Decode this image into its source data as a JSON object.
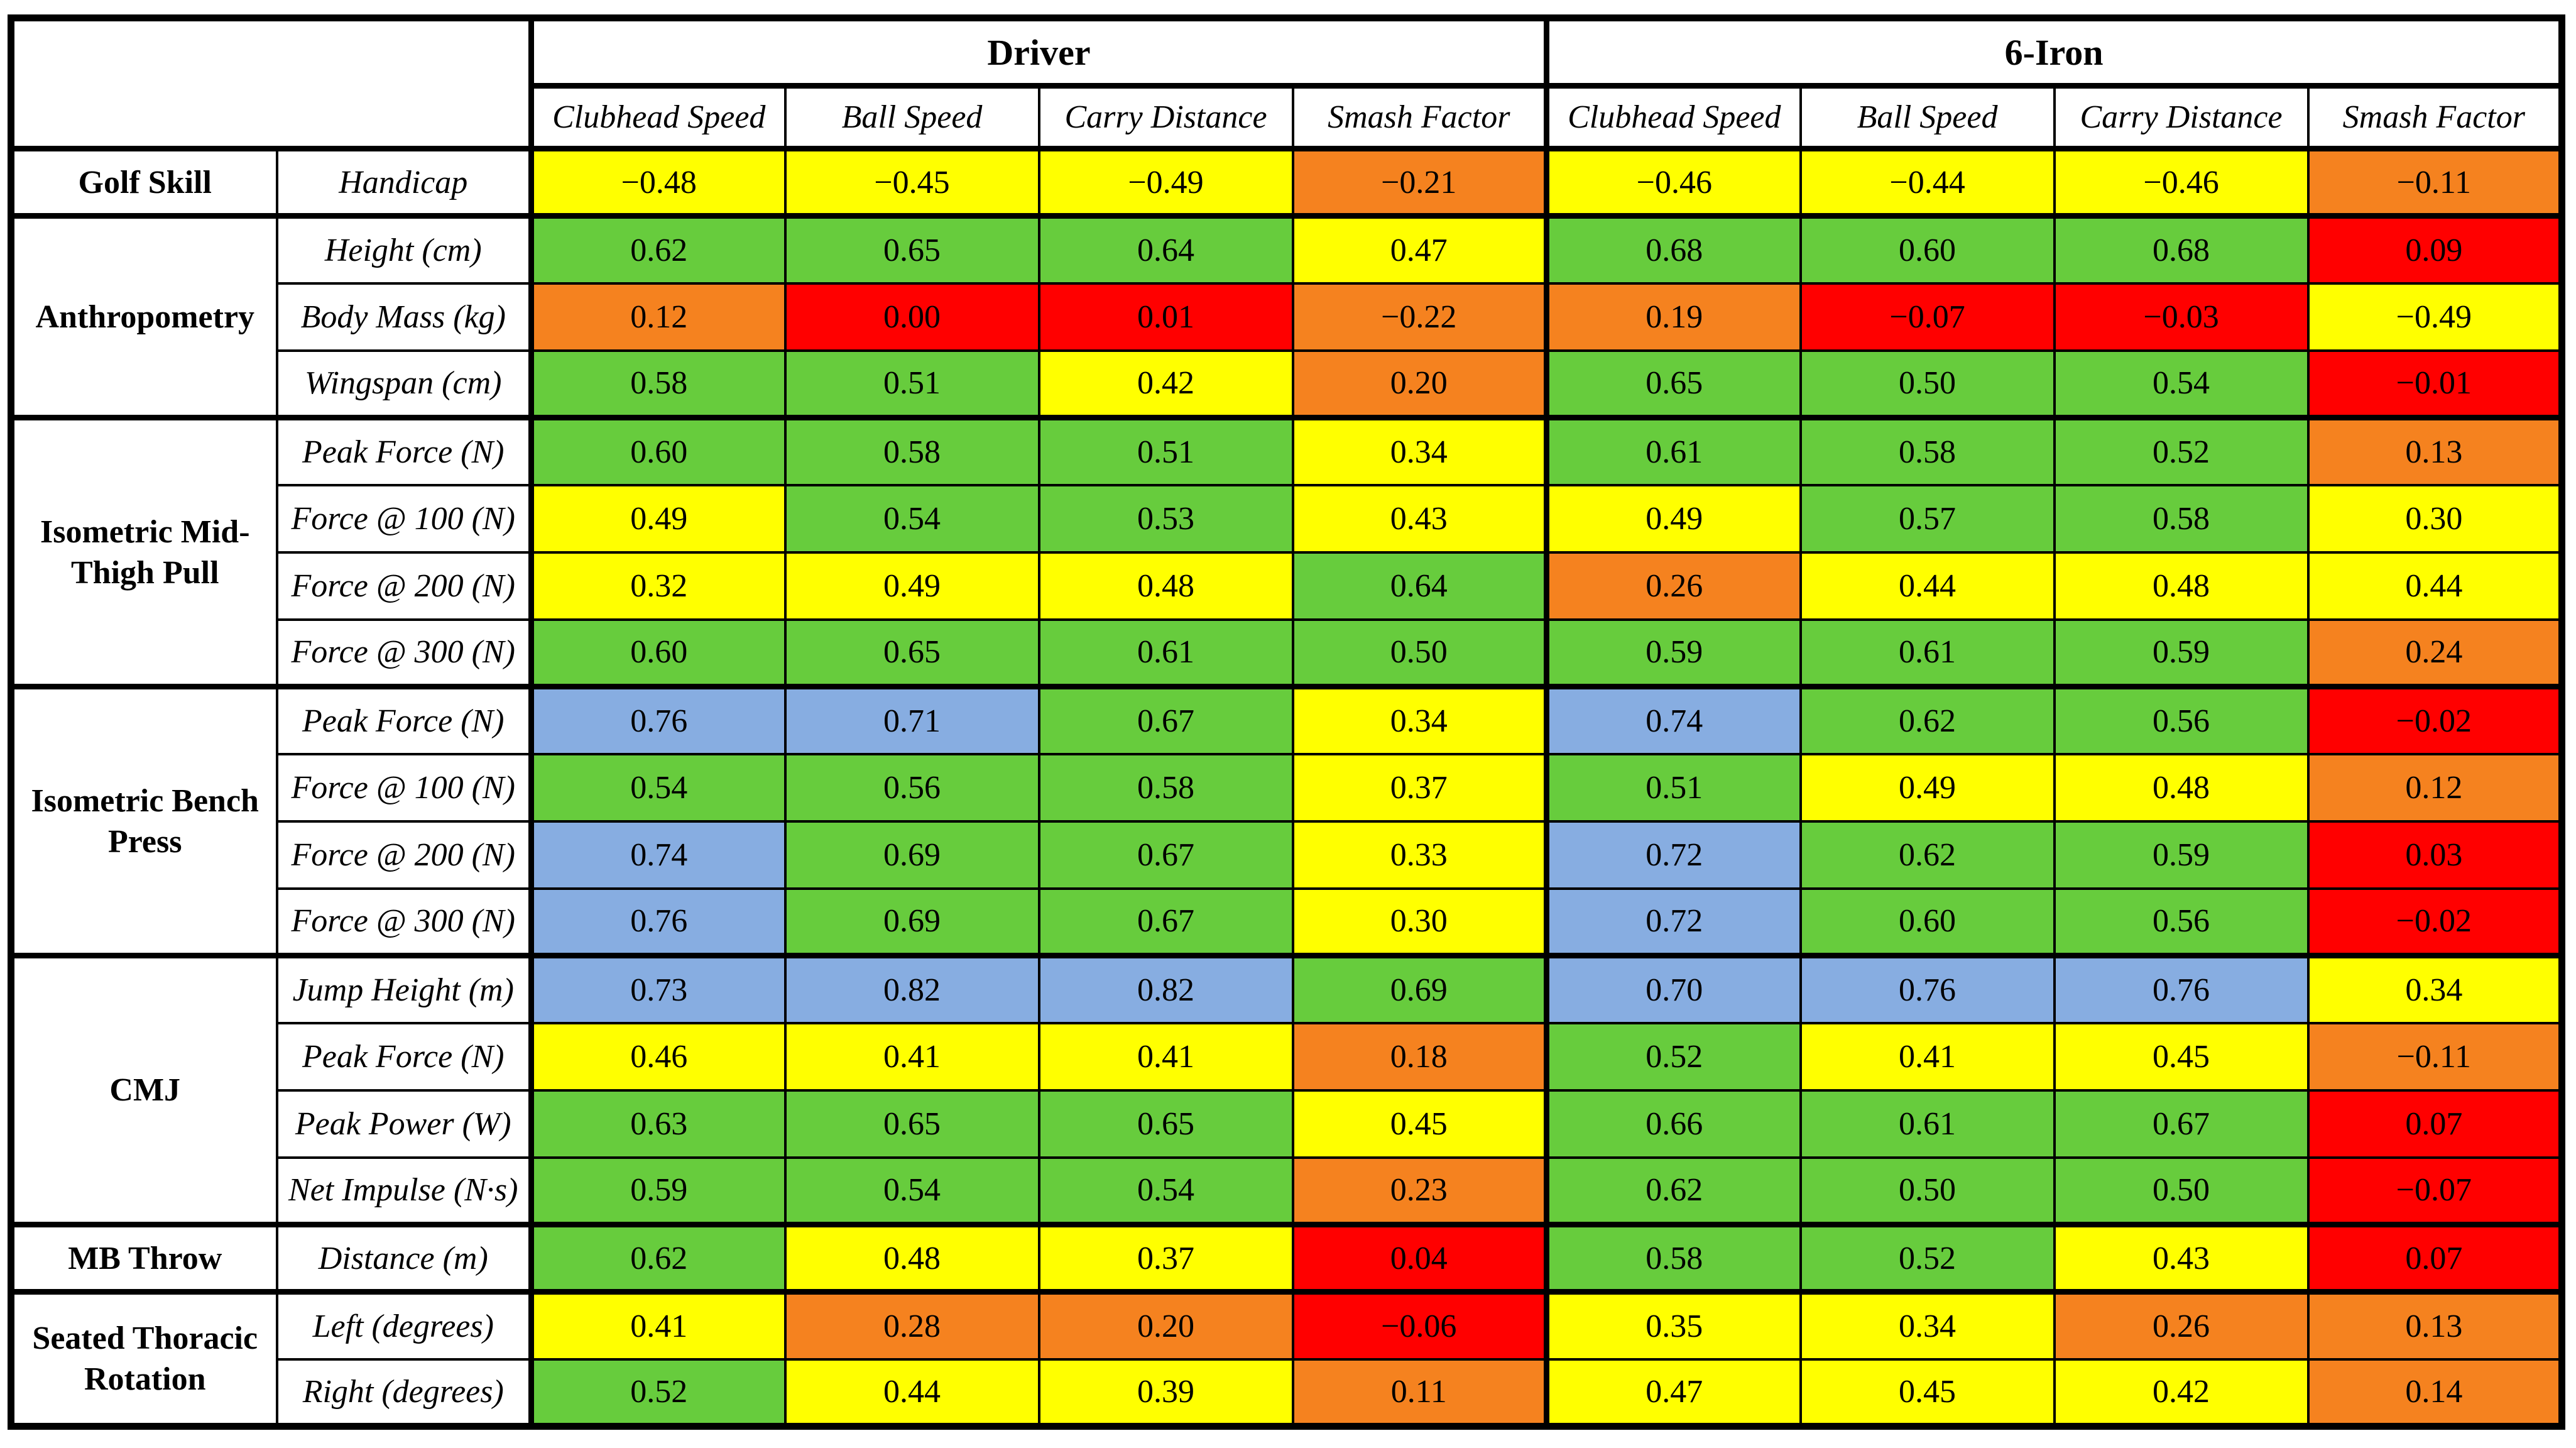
{
  "palette": {
    "blue": "#87ADE1",
    "green": "#67CC3D",
    "yellow": "#FFFF00",
    "orange": "#F5821F",
    "red": "#FF0000",
    "border": "#000000",
    "background": "#FFFFFF"
  },
  "chart_data": {
    "type": "heatmap",
    "title": "",
    "legend": "none",
    "grid": "table borders on",
    "value_range": [
      -1,
      1
    ],
    "column_groups": [
      "Driver",
      "6-Iron"
    ],
    "columns": [
      "Clubhead Speed",
      "Ball Speed",
      "Carry Distance",
      "Smash Factor",
      "Clubhead Speed",
      "Ball Speed",
      "Carry Distance",
      "Smash Factor"
    ],
    "row_groups": [
      {
        "label": "Golf Skill",
        "rows": [
          {
            "label": "Handicap",
            "values": [
              "−0.48",
              "−0.45",
              "−0.49",
              "−0.21",
              "−0.46",
              "−0.44",
              "−0.46",
              "−0.11"
            ],
            "colors": [
              "yellow",
              "yellow",
              "yellow",
              "orange",
              "yellow",
              "yellow",
              "yellow",
              "orange"
            ]
          }
        ]
      },
      {
        "label": "Anthropometry",
        "rows": [
          {
            "label": "Height (cm)",
            "values": [
              "0.62",
              "0.65",
              "0.64",
              "0.47",
              "0.68",
              "0.60",
              "0.68",
              "0.09"
            ],
            "colors": [
              "green",
              "green",
              "green",
              "yellow",
              "green",
              "green",
              "green",
              "red"
            ]
          },
          {
            "label": "Body Mass (kg)",
            "values": [
              "0.12",
              "0.00",
              "0.01",
              "−0.22",
              "0.19",
              "−0.07",
              "−0.03",
              "−0.49"
            ],
            "colors": [
              "orange",
              "red",
              "red",
              "orange",
              "orange",
              "red",
              "red",
              "yellow"
            ]
          },
          {
            "label": "Wingspan (cm)",
            "values": [
              "0.58",
              "0.51",
              "0.42",
              "0.20",
              "0.65",
              "0.50",
              "0.54",
              "−0.01"
            ],
            "colors": [
              "green",
              "green",
              "yellow",
              "orange",
              "green",
              "green",
              "green",
              "red"
            ]
          }
        ]
      },
      {
        "label": "Isometric Mid-\nThigh Pull",
        "rows": [
          {
            "label": "Peak Force (N)",
            "values": [
              "0.60",
              "0.58",
              "0.51",
              "0.34",
              "0.61",
              "0.58",
              "0.52",
              "0.13"
            ],
            "colors": [
              "green",
              "green",
              "green",
              "yellow",
              "green",
              "green",
              "green",
              "orange"
            ]
          },
          {
            "label": "Force @ 100 (N)",
            "values": [
              "0.49",
              "0.54",
              "0.53",
              "0.43",
              "0.49",
              "0.57",
              "0.58",
              "0.30"
            ],
            "colors": [
              "yellow",
              "green",
              "green",
              "yellow",
              "yellow",
              "green",
              "green",
              "yellow"
            ]
          },
          {
            "label": "Force @ 200 (N)",
            "values": [
              "0.32",
              "0.49",
              "0.48",
              "0.64",
              "0.26",
              "0.44",
              "0.48",
              "0.44"
            ],
            "colors": [
              "yellow",
              "yellow",
              "yellow",
              "green",
              "orange",
              "yellow",
              "yellow",
              "yellow"
            ]
          },
          {
            "label": "Force @ 300 (N)",
            "values": [
              "0.60",
              "0.65",
              "0.61",
              "0.50",
              "0.59",
              "0.61",
              "0.59",
              "0.24"
            ],
            "colors": [
              "green",
              "green",
              "green",
              "green",
              "green",
              "green",
              "green",
              "orange"
            ]
          }
        ]
      },
      {
        "label": "Isometric Bench\nPress",
        "rows": [
          {
            "label": "Peak Force (N)",
            "values": [
              "0.76",
              "0.71",
              "0.67",
              "0.34",
              "0.74",
              "0.62",
              "0.56",
              "−0.02"
            ],
            "colors": [
              "blue",
              "blue",
              "green",
              "yellow",
              "blue",
              "green",
              "green",
              "red"
            ]
          },
          {
            "label": "Force @ 100 (N)",
            "values": [
              "0.54",
              "0.56",
              "0.58",
              "0.37",
              "0.51",
              "0.49",
              "0.48",
              "0.12"
            ],
            "colors": [
              "green",
              "green",
              "green",
              "yellow",
              "green",
              "yellow",
              "yellow",
              "orange"
            ]
          },
          {
            "label": "Force @ 200 (N)",
            "values": [
              "0.74",
              "0.69",
              "0.67",
              "0.33",
              "0.72",
              "0.62",
              "0.59",
              "0.03"
            ],
            "colors": [
              "blue",
              "green",
              "green",
              "yellow",
              "blue",
              "green",
              "green",
              "red"
            ]
          },
          {
            "label": "Force @ 300 (N)",
            "values": [
              "0.76",
              "0.69",
              "0.67",
              "0.30",
              "0.72",
              "0.60",
              "0.56",
              "−0.02"
            ],
            "colors": [
              "blue",
              "green",
              "green",
              "yellow",
              "blue",
              "green",
              "green",
              "red"
            ]
          }
        ]
      },
      {
        "label": "CMJ",
        "rows": [
          {
            "label": "Jump Height (m)",
            "values": [
              "0.73",
              "0.82",
              "0.82",
              "0.69",
              "0.70",
              "0.76",
              "0.76",
              "0.34"
            ],
            "colors": [
              "blue",
              "blue",
              "blue",
              "green",
              "blue",
              "blue",
              "blue",
              "yellow"
            ]
          },
          {
            "label": "Peak Force (N)",
            "values": [
              "0.46",
              "0.41",
              "0.41",
              "0.18",
              "0.52",
              "0.41",
              "0.45",
              "−0.11"
            ],
            "colors": [
              "yellow",
              "yellow",
              "yellow",
              "orange",
              "green",
              "yellow",
              "yellow",
              "orange"
            ]
          },
          {
            "label": "Peak Power (W)",
            "values": [
              "0.63",
              "0.65",
              "0.65",
              "0.45",
              "0.66",
              "0.61",
              "0.67",
              "0.07"
            ],
            "colors": [
              "green",
              "green",
              "green",
              "yellow",
              "green",
              "green",
              "green",
              "red"
            ]
          },
          {
            "label": "Net Impulse (N·s)",
            "values": [
              "0.59",
              "0.54",
              "0.54",
              "0.23",
              "0.62",
              "0.50",
              "0.50",
              "−0.07"
            ],
            "colors": [
              "green",
              "green",
              "green",
              "orange",
              "green",
              "green",
              "green",
              "red"
            ]
          }
        ]
      },
      {
        "label": "MB Throw",
        "rows": [
          {
            "label": "Distance (m)",
            "values": [
              "0.62",
              "0.48",
              "0.37",
              "0.04",
              "0.58",
              "0.52",
              "0.43",
              "0.07"
            ],
            "colors": [
              "green",
              "yellow",
              "yellow",
              "red",
              "green",
              "green",
              "yellow",
              "red"
            ]
          }
        ]
      },
      {
        "label": "Seated Thoracic\nRotation",
        "rows": [
          {
            "label": "Left (degrees)",
            "values": [
              "0.41",
              "0.28",
              "0.20",
              "−0.06",
              "0.35",
              "0.34",
              "0.26",
              "0.13"
            ],
            "colors": [
              "yellow",
              "orange",
              "orange",
              "red",
              "yellow",
              "yellow",
              "orange",
              "orange"
            ]
          },
          {
            "label": "Right (degrees)",
            "values": [
              "0.52",
              "0.44",
              "0.39",
              "0.11",
              "0.47",
              "0.45",
              "0.42",
              "0.14"
            ],
            "colors": [
              "green",
              "yellow",
              "yellow",
              "orange",
              "yellow",
              "yellow",
              "yellow",
              "orange"
            ]
          }
        ]
      }
    ]
  }
}
